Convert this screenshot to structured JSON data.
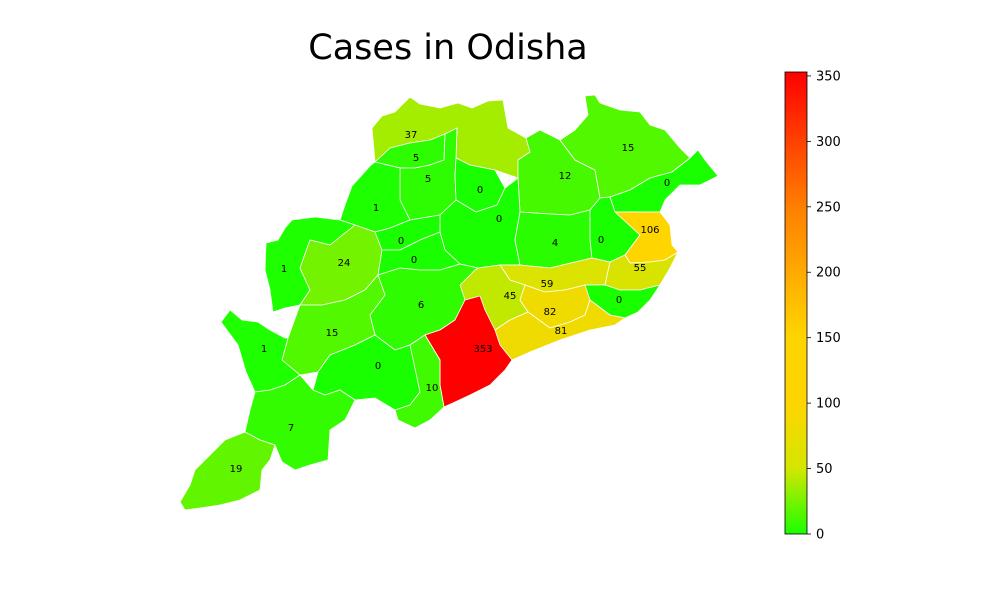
{
  "title": "Cases in Odisha",
  "colormap": {
    "stops": [
      {
        "value": 0,
        "color": "#1aff00"
      },
      {
        "value": 50,
        "color": "#d4e600"
      },
      {
        "value": 100,
        "color": "#ffd500"
      },
      {
        "value": 150,
        "color": "#ffd500"
      },
      {
        "value": 250,
        "color": "#ff7f00"
      },
      {
        "value": 353,
        "color": "#ff0000"
      }
    ],
    "min": 0,
    "max": 353,
    "ticks": [
      0,
      50,
      100,
      150,
      200,
      250,
      300,
      350
    ]
  },
  "districts": [
    {
      "id": "d-sundargarh-n",
      "value": 37
    },
    {
      "id": "d-jharsuguda",
      "value": 5
    },
    {
      "id": "d-sambalpur",
      "value": 5
    },
    {
      "id": "d-deogarh",
      "value": 0
    },
    {
      "id": "d-keonjhar",
      "value": 12
    },
    {
      "id": "d-mayurbhanj",
      "value": 15
    },
    {
      "id": "d-balasore",
      "value": 0
    },
    {
      "id": "d-bargarh",
      "value": 1
    },
    {
      "id": "d-angul",
      "value": 0
    },
    {
      "id": "d-jajpur",
      "value": 4
    },
    {
      "id": "d-bhadrak",
      "value": 0
    },
    {
      "id": "d-kendrapara",
      "value": 106
    },
    {
      "id": "d-nuapada",
      "value": 1
    },
    {
      "id": "d-bolangir",
      "value": 24
    },
    {
      "id": "d-subarnapur",
      "value": 0
    },
    {
      "id": "d-boudh",
      "value": 0
    },
    {
      "id": "d-cuttack",
      "value": 59
    },
    {
      "id": "d-jagatsinghpur",
      "value": 55
    },
    {
      "id": "d-dhenkanal",
      "value": 45
    },
    {
      "id": "d-nayagarh",
      "value": 6
    },
    {
      "id": "d-khurda",
      "value": 82
    },
    {
      "id": "d-jajpur2",
      "value": 0
    },
    {
      "id": "d-puri",
      "value": 81
    },
    {
      "id": "d-kalahandi",
      "value": 15
    },
    {
      "id": "d-nabarangpur",
      "value": 1
    },
    {
      "id": "d-ganjam",
      "value": 353
    },
    {
      "id": "d-kandhamal",
      "value": 0
    },
    {
      "id": "d-gajapati",
      "value": 10
    },
    {
      "id": "d-koraput",
      "value": 7
    },
    {
      "id": "d-malkangiri",
      "value": 19
    }
  ]
}
